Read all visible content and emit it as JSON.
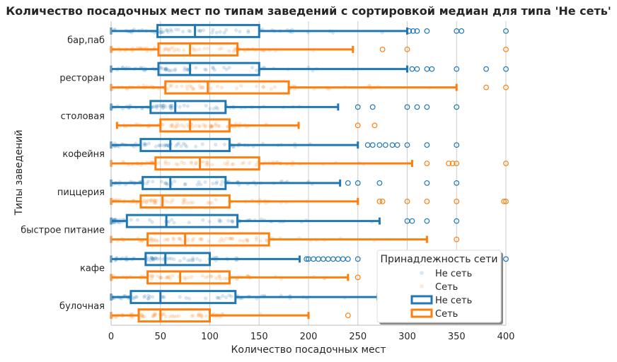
{
  "chart_data": {
    "type": "box",
    "title": "Количество посадочных мест по типам заведений с сортировкой медиан для типа 'Не сеть'",
    "xlabel": "Количество посадочных мест",
    "ylabel": "Типы заведений",
    "xlim": [
      0,
      400
    ],
    "xticks": [
      0,
      50,
      100,
      150,
      200,
      250,
      300,
      350,
      400
    ],
    "grid": "vertical",
    "legend": {
      "title": "Принадлежность сети",
      "placement": "bottom-right",
      "entries": [
        {
          "label": "Не сеть",
          "kind": "points",
          "series": "not_chain"
        },
        {
          "label": "Сеть",
          "kind": "points",
          "series": "chain"
        },
        {
          "label": "Не сеть",
          "kind": "box",
          "series": "not_chain"
        },
        {
          "label": "Сеть",
          "kind": "box",
          "series": "chain"
        }
      ]
    },
    "colors": {
      "not_chain": "#1f77b4",
      "chain": "#ff7f0e"
    },
    "categories": [
      "бар,паб",
      "ресторан",
      "столовая",
      "кофейня",
      "пиццерия",
      "быстрое питание",
      "кафе",
      "булочная"
    ],
    "series": [
      {
        "name": "Не сеть",
        "key": "not_chain",
        "boxes": [
          {
            "q1": 47,
            "median": 85,
            "q3": 150,
            "wlo": 0,
            "whi": 300,
            "outliers": [
              302,
              306,
              310,
              320,
              350,
              355,
              400
            ]
          },
          {
            "q1": 48,
            "median": 80,
            "q3": 150,
            "wlo": 0,
            "whi": 300,
            "outliers": [
              305,
              310,
              320,
              325,
              350,
              380,
              400
            ]
          },
          {
            "q1": 40,
            "median": 65,
            "q3": 116,
            "wlo": 0,
            "whi": 230,
            "outliers": [
              250,
              265,
              300,
              310,
              320,
              350
            ]
          },
          {
            "q1": 30,
            "median": 60,
            "q3": 120,
            "wlo": 0,
            "whi": 250,
            "outliers": [
              260,
              265,
              272,
              278,
              285,
              290,
              300,
              320,
              350
            ]
          },
          {
            "q1": 32,
            "median": 60,
            "q3": 116,
            "wlo": 0,
            "whi": 232,
            "outliers": [
              240,
              250,
              272,
              320,
              350
            ]
          },
          {
            "q1": 16,
            "median": 56,
            "q3": 128,
            "wlo": 0,
            "whi": 272,
            "outliers": [
              300,
              305,
              320,
              350
            ]
          },
          {
            "q1": 35,
            "median": 55,
            "q3": 100,
            "wlo": 0,
            "whi": 191,
            "outliers": [
              198,
              200,
              205,
              210,
              215,
              220,
              225,
              230,
              235,
              240,
              250,
              400
            ]
          },
          {
            "q1": 20,
            "median": 50,
            "q3": 126,
            "wlo": 0,
            "whi": 270,
            "outliers": []
          }
        ]
      },
      {
        "name": "Сеть",
        "key": "chain",
        "boxes": [
          {
            "q1": 48,
            "median": 80,
            "q3": 128,
            "wlo": 0,
            "whi": 245,
            "outliers": [
              275,
              300,
              400
            ]
          },
          {
            "q1": 55,
            "median": 98,
            "q3": 180,
            "wlo": 0,
            "whi": 350,
            "outliers": [
              380,
              400
            ]
          },
          {
            "q1": 50,
            "median": 80,
            "q3": 120,
            "wlo": 6,
            "whi": 190,
            "outliers": [
              250,
              267
            ]
          },
          {
            "q1": 45,
            "median": 90,
            "q3": 150,
            "wlo": 0,
            "whi": 305,
            "outliers": [
              320,
              342,
              346,
              350,
              400
            ]
          },
          {
            "q1": 30,
            "median": 52,
            "q3": 120,
            "wlo": 0,
            "whi": 250,
            "outliers": [
              272,
              275,
              300,
              320,
              350,
              398,
              400
            ]
          },
          {
            "q1": 37,
            "median": 75,
            "q3": 160,
            "wlo": 0,
            "whi": 320,
            "outliers": [
              350
            ]
          },
          {
            "q1": 37,
            "median": 70,
            "q3": 120,
            "wlo": 0,
            "whi": 240,
            "outliers": [
              250
            ]
          },
          {
            "q1": 28,
            "median": 50,
            "q3": 100,
            "wlo": 0,
            "whi": 200,
            "outliers": [
              240
            ]
          }
        ]
      }
    ]
  }
}
